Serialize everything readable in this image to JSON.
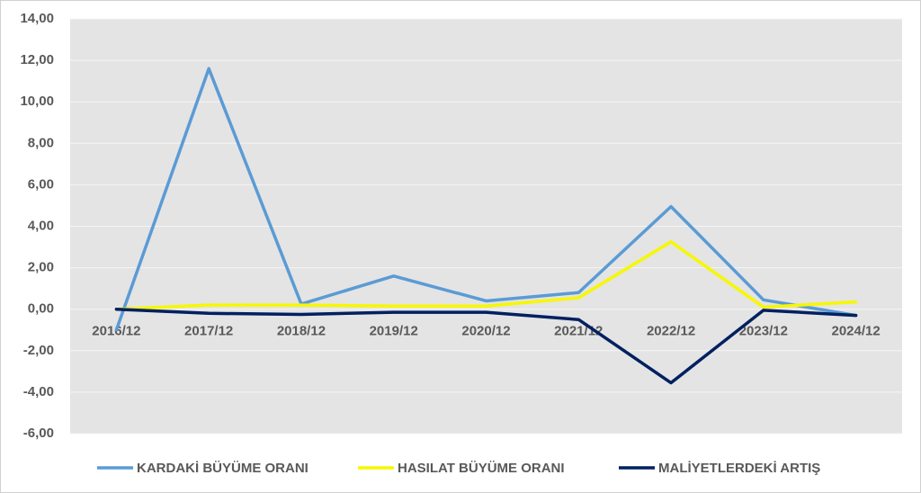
{
  "chart_data": {
    "type": "line",
    "categories": [
      "2016/12",
      "2017/12",
      "2018/12",
      "2019/12",
      "2020/12",
      "2021/12",
      "2022/12",
      "2023/12",
      "2024/12"
    ],
    "series": [
      {
        "name": "KARDAKİ BÜYÜME ORANI",
        "color": "#5b9bd5",
        "values": [
          -1.0,
          11.6,
          0.25,
          1.6,
          0.4,
          0.8,
          4.95,
          0.45,
          -0.3
        ]
      },
      {
        "name": "HASILAT BÜYÜME ORANI",
        "color": "#f7f700",
        "values": [
          0.0,
          0.2,
          0.2,
          0.15,
          0.15,
          0.55,
          3.25,
          0.1,
          0.35
        ]
      },
      {
        "name": "MALİYETLERDEKİ ARTIŞ",
        "color": "#002060",
        "values": [
          0.0,
          -0.2,
          -0.25,
          -0.15,
          -0.15,
          -0.5,
          -3.55,
          -0.05,
          -0.3
        ]
      }
    ],
    "ylim": [
      -6,
      14
    ],
    "yticks": [
      {
        "value": -6,
        "label": "-6,00"
      },
      {
        "value": -4,
        "label": "-4,00"
      },
      {
        "value": -2,
        "label": "-2,00"
      },
      {
        "value": 0,
        "label": "0,00"
      },
      {
        "value": 2,
        "label": "2,00"
      },
      {
        "value": 4,
        "label": "4,00"
      },
      {
        "value": 6,
        "label": "6,00"
      },
      {
        "value": 8,
        "label": "8,00"
      },
      {
        "value": 10,
        "label": "10,00"
      },
      {
        "value": 12,
        "label": "12,00"
      },
      {
        "value": 14,
        "label": "14,00"
      }
    ],
    "grid": true
  }
}
